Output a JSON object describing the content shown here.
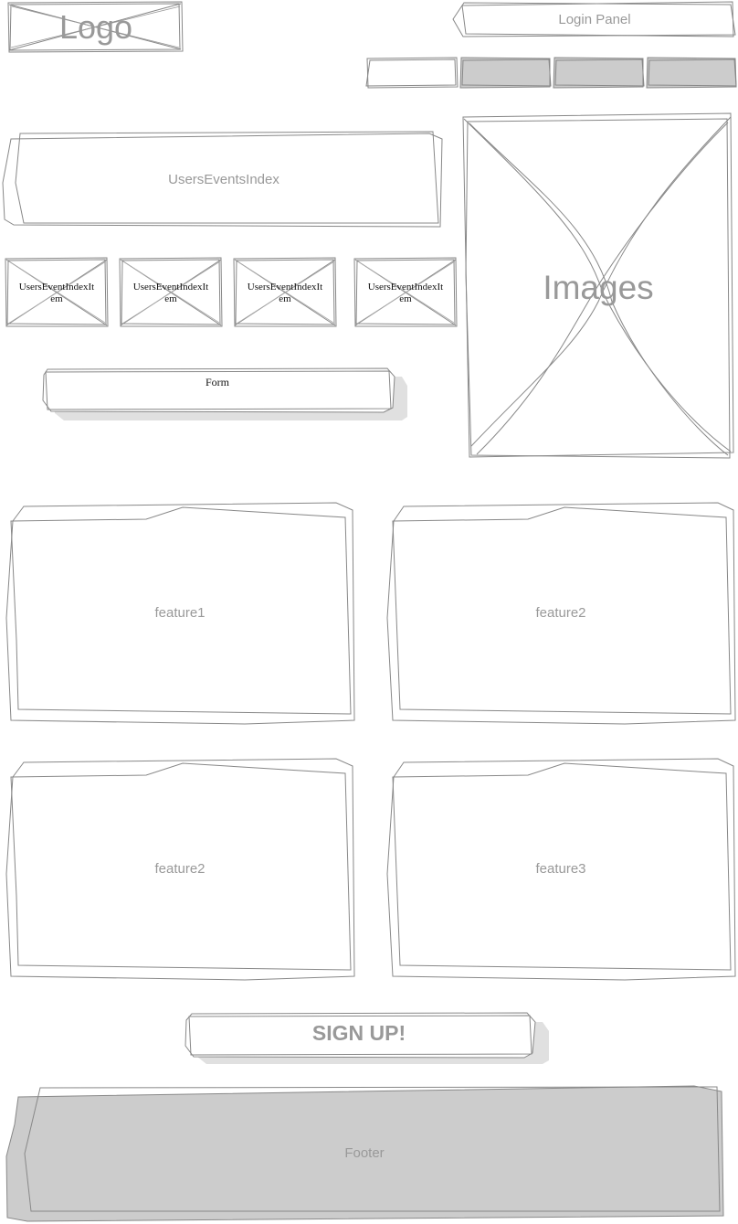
{
  "header": {
    "logo_text": "Logo",
    "login_panel_label": "Login Panel",
    "nav_tabs": [
      "",
      "",
      "",
      ""
    ]
  },
  "users_events_index": {
    "label": "UsersEventsIndex",
    "items": [
      {
        "line1": "UsersEventIndexIt",
        "line2": "em"
      },
      {
        "line1": "UsersEventIndexIt",
        "line2": "em"
      },
      {
        "line1": "UsersEventIndexIt",
        "line2": "em"
      },
      {
        "line1": "UsersEventIndexIt",
        "line2": "em"
      }
    ]
  },
  "form": {
    "label": "Form"
  },
  "images": {
    "label": "Images"
  },
  "features": [
    {
      "label": "feature1"
    },
    {
      "label": "feature2"
    },
    {
      "label": "feature2"
    },
    {
      "label": "feature3"
    }
  ],
  "signup": {
    "label": "SIGN UP!"
  },
  "footer": {
    "label": "Footer"
  },
  "colors": {
    "stroke": "#888888",
    "text_gray": "#999999",
    "fill_gray": "#cccccc",
    "shadow": "#e0e0e0",
    "text_black": "#111111"
  }
}
